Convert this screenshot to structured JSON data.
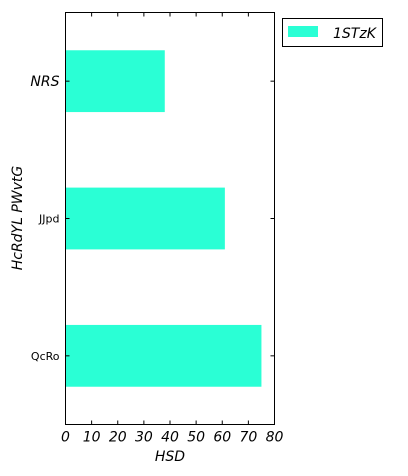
{
  "chart_data": {
    "type": "bar",
    "orientation": "horizontal",
    "categories": [
      "NRS",
      "JJpd",
      "QcRo"
    ],
    "series": [
      {
        "name": "1STzK",
        "values": [
          38,
          61,
          75
        ],
        "color": "#2affd5"
      }
    ],
    "xlabel": "HSD",
    "ylabel": "HcRdYL PWvtG",
    "xlim": [
      0,
      80
    ],
    "xticks": [
      0,
      10,
      20,
      30,
      40,
      50,
      60,
      70,
      80
    ],
    "grid": false,
    "legend": {
      "position": "outside-top-right"
    }
  }
}
